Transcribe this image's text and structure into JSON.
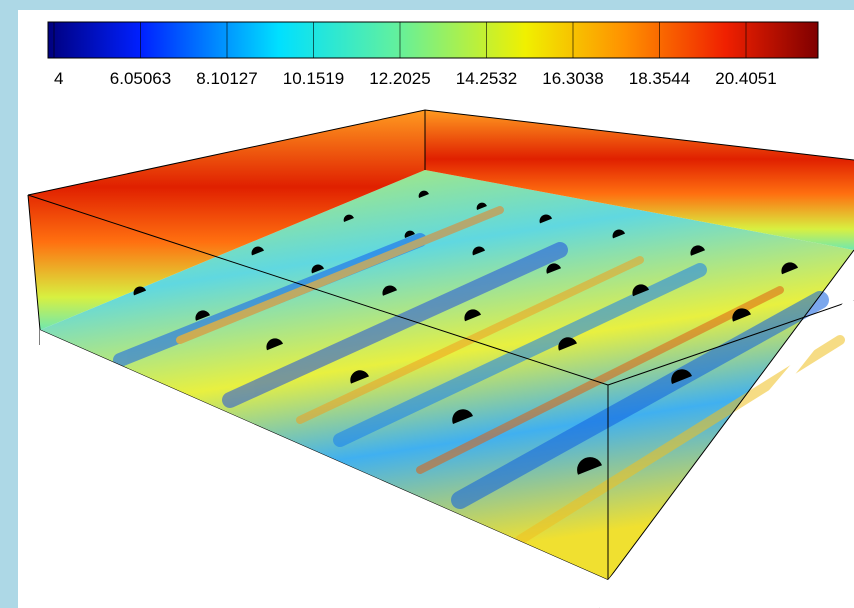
{
  "colorbar": {
    "ticks": [
      4,
      6.05063,
      8.10127,
      10.1519,
      12.2025,
      14.2532,
      16.3038,
      18.3544,
      20.4051
    ]
  }
}
